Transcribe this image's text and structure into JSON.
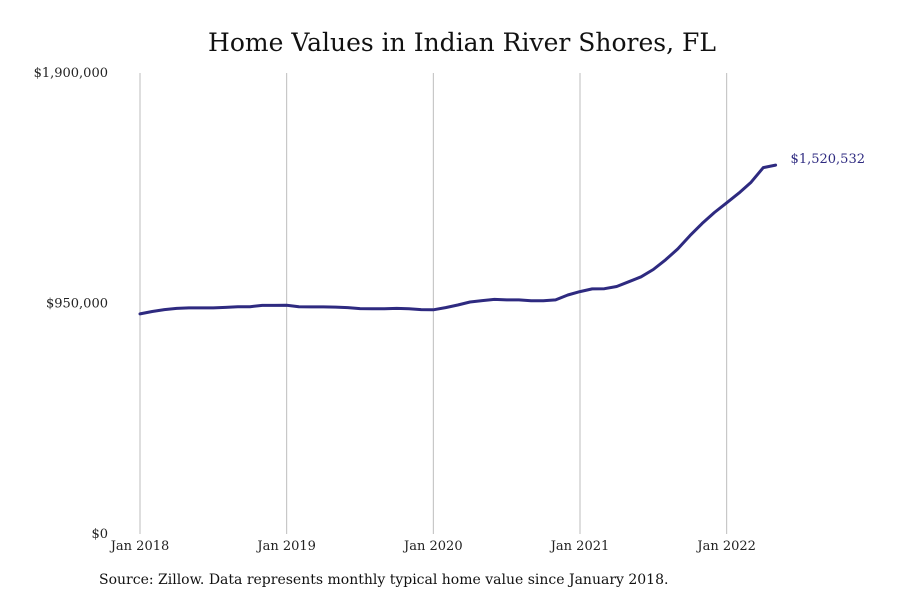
{
  "chart_data": {
    "type": "line",
    "title": "Home Values in Indian River Shores, FL",
    "xlabel": "",
    "ylabel": "",
    "ylim": [
      0,
      1900000
    ],
    "yticks": [
      0,
      950000,
      1900000
    ],
    "ytick_labels": [
      "$0",
      "$950,000",
      "$1,900,000"
    ],
    "xlim": [
      "2018-01",
      "2022-05"
    ],
    "xticks": [
      "2018-01",
      "2019-01",
      "2020-01",
      "2021-01",
      "2022-01"
    ],
    "xtick_labels": [
      "Jan 2018",
      "Jan 2019",
      "Jan 2020",
      "Jan 2021",
      "Jan 2022"
    ],
    "grid": "vertical",
    "end_label": "$1,520,532",
    "series_color": "#2e2a80",
    "series": [
      {
        "x": [
          "2018-01",
          "2018-02",
          "2018-03",
          "2018-04",
          "2018-05",
          "2018-06",
          "2018-07",
          "2018-08",
          "2018-09",
          "2018-10",
          "2018-11",
          "2018-12",
          "2019-01",
          "2019-02",
          "2019-03",
          "2019-04",
          "2019-05",
          "2019-06",
          "2019-07",
          "2019-08",
          "2019-09",
          "2019-10",
          "2019-11",
          "2019-12",
          "2020-01",
          "2020-02",
          "2020-03",
          "2020-04",
          "2020-05",
          "2020-06",
          "2020-07",
          "2020-08",
          "2020-09",
          "2020-10",
          "2020-11",
          "2020-12",
          "2021-01",
          "2021-02",
          "2021-03",
          "2021-04",
          "2021-05",
          "2021-06",
          "2021-07",
          "2021-08",
          "2021-09",
          "2021-10",
          "2021-11",
          "2021-12",
          "2022-01",
          "2022-02",
          "2022-03",
          "2022-04",
          "2022-05"
        ],
        "values": [
          907000,
          917000,
          925000,
          930000,
          932000,
          932000,
          932000,
          934000,
          937000,
          937000,
          942000,
          942000,
          943000,
          937000,
          936000,
          936000,
          935000,
          933000,
          929000,
          928000,
          928000,
          930000,
          928000,
          925000,
          924000,
          933000,
          944000,
          956000,
          962000,
          967000,
          965000,
          965000,
          961000,
          961000,
          965000,
          985000,
          999000,
          1010000,
          1011000,
          1020000,
          1040000,
          1060000,
          1090000,
          1130000,
          1175000,
          1230000,
          1280000,
          1325000,
          1365000,
          1405000,
          1450000,
          1510000,
          1520532
        ]
      }
    ]
  },
  "source": "Source: Zillow. Data represents monthly typical home value since January 2018."
}
